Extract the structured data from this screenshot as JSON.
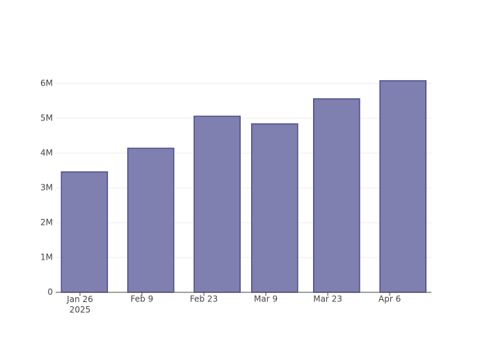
{
  "chart_data": {
    "type": "bar",
    "x": [
      "2025-01-27",
      "2025-02-11",
      "2025-02-26",
      "2025-03-11",
      "2025-03-25",
      "2025-04-09"
    ],
    "values": [
      3460000,
      4140000,
      5060000,
      4840000,
      5560000,
      6080000
    ],
    "color": "#7f7fb0",
    "edge_color": "#4a4a8c",
    "xlim": [
      "2025-01-20T12:00",
      "2025-04-15T10:00"
    ],
    "xticks": [
      {
        "value": "2025-01-26",
        "label": "Jan 26\n2025"
      },
      {
        "value": "2025-02-09",
        "label": "Feb 9"
      },
      {
        "value": "2025-02-23",
        "label": "Feb 23"
      },
      {
        "value": "2025-03-09",
        "label": "Mar 9"
      },
      {
        "value": "2025-03-23",
        "label": "Mar 23"
      },
      {
        "value": "2025-04-06",
        "label": "Apr 6"
      }
    ],
    "ylim": [
      0,
      6400000
    ],
    "yticks": [
      0,
      {
        "value": 1000000,
        "label": "1M"
      },
      {
        "value": 2000000,
        "label": "2M"
      },
      {
        "value": 3000000,
        "label": "3M"
      },
      {
        "value": 4000000,
        "label": "4M"
      },
      {
        "value": 5000000,
        "label": "5M"
      },
      {
        "value": 6000000,
        "label": "6M"
      }
    ],
    "grid": true
  }
}
